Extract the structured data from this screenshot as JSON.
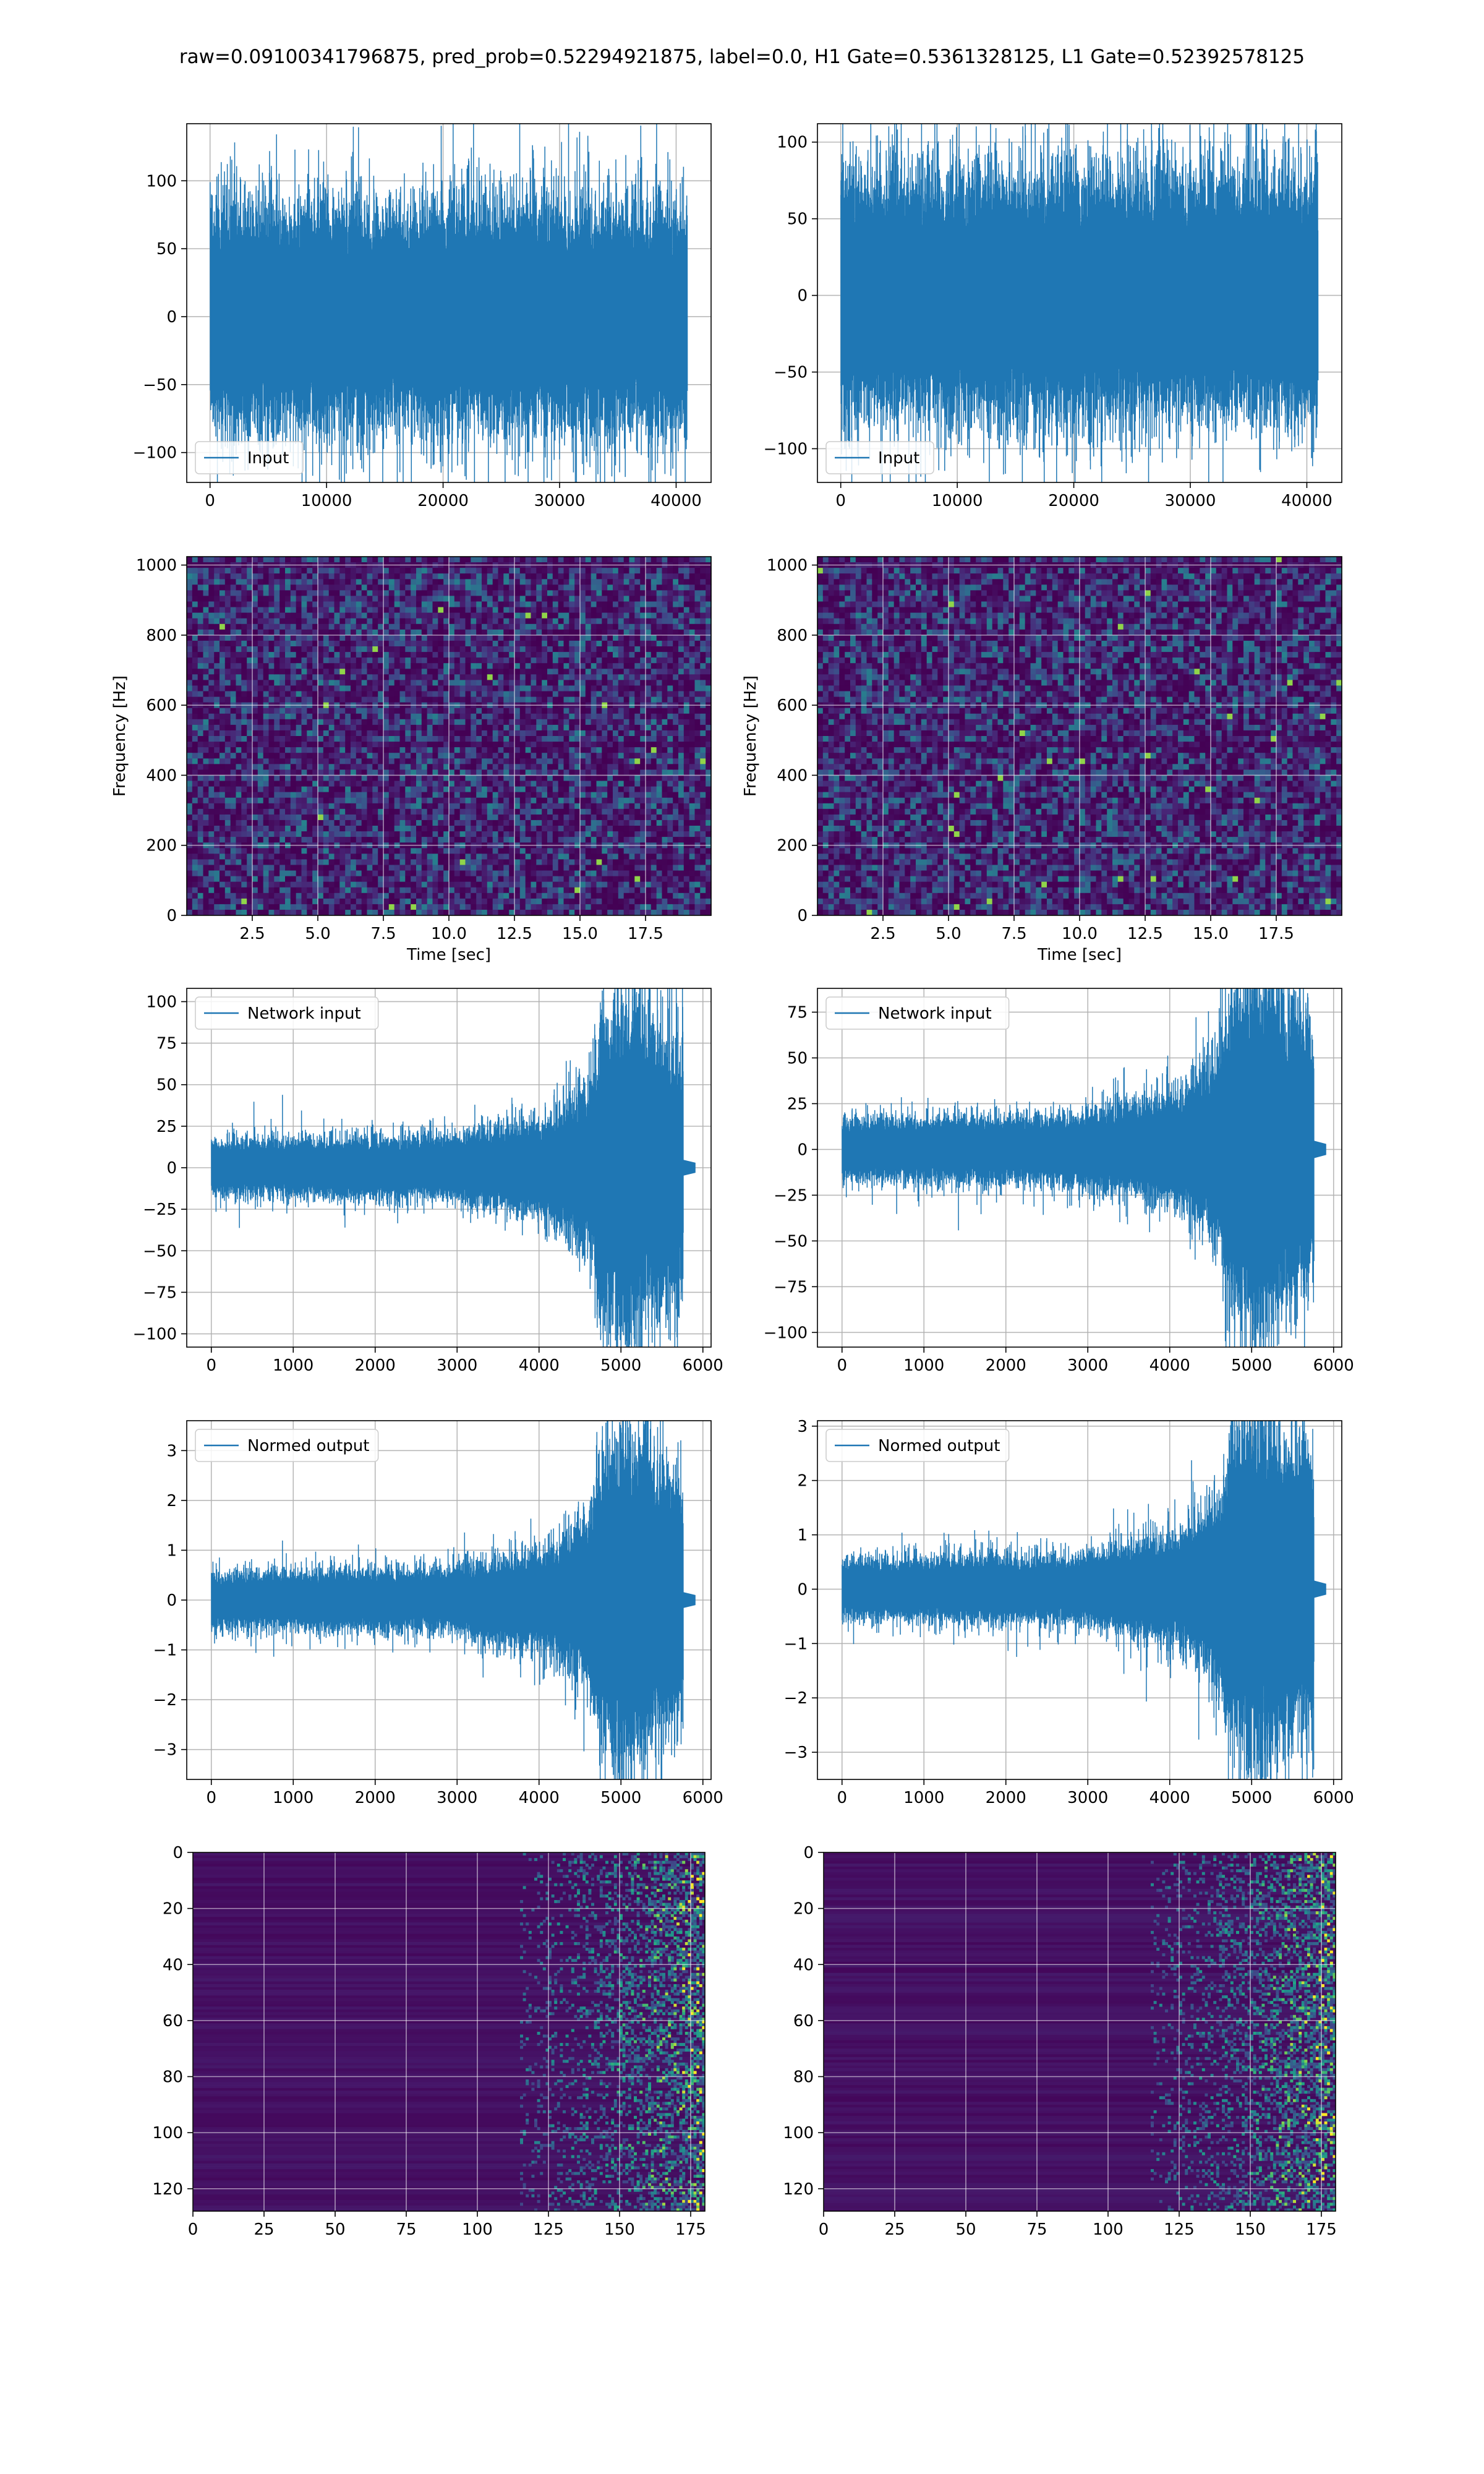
{
  "figure": {
    "suptitle": "raw=0.09100341796875, pred_prob=0.52294921875, label=0.0, H1 Gate=0.5361328125, L1 Gate=0.52392578125",
    "series_color": "#1f77b4",
    "grid_color": "#b0b0b0",
    "colormap": "viridis"
  },
  "chart_data": [
    {
      "id": "h1-input",
      "type": "line",
      "title": "",
      "legend": "Input",
      "legend_loc": "lower-left",
      "xlabel": "",
      "ylabel": "",
      "xlim": [
        -2000,
        43000
      ],
      "ylim": [
        -122,
        142
      ],
      "xticks": [
        0,
        10000,
        20000,
        30000,
        40000
      ],
      "xtick_labels": [
        "0",
        "10000",
        "20000",
        "30000",
        "40000"
      ],
      "yticks": [
        -100,
        -50,
        0,
        50,
        100
      ],
      "ytick_labels": [
        "−100",
        "−50",
        "0",
        "50",
        "100"
      ],
      "signal": {
        "n": 40960,
        "noise_amp": 30,
        "env_points": [
          [
            0,
            1
          ],
          [
            1,
            1
          ]
        ],
        "gap_after": 0
      },
      "grid": true
    },
    {
      "id": "l1-input",
      "type": "line",
      "title": "",
      "legend": "Input",
      "legend_loc": "lower-left",
      "xlabel": "",
      "ylabel": "",
      "xlim": [
        -2000,
        43000
      ],
      "ylim": [
        -122,
        112
      ],
      "xticks": [
        0,
        10000,
        20000,
        30000,
        40000
      ],
      "xtick_labels": [
        "0",
        "10000",
        "20000",
        "30000",
        "40000"
      ],
      "yticks": [
        -100,
        -50,
        0,
        50,
        100
      ],
      "ytick_labels": [
        "−100",
        "−50",
        "0",
        "50",
        "100"
      ],
      "signal": {
        "n": 40960,
        "noise_amp": 29,
        "env_points": [
          [
            0,
            1
          ],
          [
            1,
            1
          ]
        ],
        "gap_after": 0
      },
      "grid": true
    },
    {
      "id": "h1-spectrogram",
      "type": "heatmap",
      "title": "",
      "xlabel": "Time [sec]",
      "ylabel": "Frequency [Hz]",
      "xlim": [
        0,
        20
      ],
      "ylim": [
        0,
        1024
      ],
      "xticks": [
        2.5,
        5.0,
        7.5,
        10.0,
        12.5,
        15.0,
        17.5
      ],
      "xtick_labels": [
        "2.5",
        "5.0",
        "7.5",
        "10.0",
        "12.5",
        "15.0",
        "17.5"
      ],
      "yticks": [
        0,
        200,
        400,
        600,
        800,
        1000
      ],
      "ytick_labels": [
        "0",
        "200",
        "400",
        "600",
        "800",
        "1000"
      ],
      "grid": true
    },
    {
      "id": "l1-spectrogram",
      "type": "heatmap",
      "title": "",
      "xlabel": "Time [sec]",
      "ylabel": "Frequency [Hz]",
      "xlim": [
        0,
        20
      ],
      "ylim": [
        0,
        1024
      ],
      "xticks": [
        2.5,
        5.0,
        7.5,
        10.0,
        12.5,
        15.0,
        17.5
      ],
      "xtick_labels": [
        "2.5",
        "5.0",
        "7.5",
        "10.0",
        "12.5",
        "15.0",
        "17.5"
      ],
      "yticks": [
        0,
        200,
        400,
        600,
        800,
        1000
      ],
      "ytick_labels": [
        "0",
        "200",
        "400",
        "600",
        "800",
        "1000"
      ],
      "grid": true
    },
    {
      "id": "h1-network-input",
      "type": "line",
      "title": "",
      "legend": "Network input",
      "legend_loc": "upper-left",
      "xlabel": "",
      "ylabel": "",
      "xlim": [
        -300,
        6100
      ],
      "ylim": [
        -108,
        108
      ],
      "xticks": [
        0,
        1000,
        2000,
        3000,
        4000,
        5000,
        6000
      ],
      "xtick_labels": [
        "0",
        "1000",
        "2000",
        "3000",
        "4000",
        "5000",
        "6000"
      ],
      "yticks": [
        -100,
        -75,
        -50,
        -25,
        0,
        25,
        50,
        75,
        100
      ],
      "ytick_labels": [
        "−100",
        "−75",
        "−50",
        "−25",
        "0",
        "25",
        "50",
        "75",
        "100"
      ],
      "signal": {
        "n": 5760,
        "noise_amp": 6,
        "env_points": [
          [
            0,
            1
          ],
          [
            0.5,
            1.15
          ],
          [
            0.72,
            1.9
          ],
          [
            0.8,
            3.2
          ],
          [
            0.83,
            5.5
          ],
          [
            0.87,
            6.3
          ],
          [
            0.92,
            5.8
          ],
          [
            0.96,
            5.0
          ],
          [
            0.99,
            4.5
          ],
          [
            1.0,
            4.2
          ]
        ],
        "gap_after": 150
      },
      "grid": true
    },
    {
      "id": "l1-network-input",
      "type": "line",
      "title": "",
      "legend": "Network input",
      "legend_loc": "upper-left",
      "xlabel": "",
      "ylabel": "",
      "xlim": [
        -300,
        6100
      ],
      "ylim": [
        -108,
        88
      ],
      "xticks": [
        0,
        1000,
        2000,
        3000,
        4000,
        5000,
        6000
      ],
      "xtick_labels": [
        "0",
        "1000",
        "2000",
        "3000",
        "4000",
        "5000",
        "6000"
      ],
      "yticks": [
        -100,
        -75,
        -50,
        -25,
        0,
        25,
        50,
        75
      ],
      "ytick_labels": [
        "−100",
        "−75",
        "−50",
        "−25",
        "0",
        "25",
        "50",
        "75"
      ],
      "signal": {
        "n": 5760,
        "noise_amp": 6,
        "env_points": [
          [
            0,
            1
          ],
          [
            0.5,
            1.15
          ],
          [
            0.72,
            1.9
          ],
          [
            0.8,
            3.2
          ],
          [
            0.83,
            5.3
          ],
          [
            0.87,
            6.0
          ],
          [
            0.92,
            5.6
          ],
          [
            0.96,
            4.8
          ],
          [
            0.99,
            4.4
          ],
          [
            1.0,
            4.0
          ]
        ],
        "gap_after": 150
      },
      "grid": true
    },
    {
      "id": "h1-normed-output",
      "type": "line",
      "title": "",
      "legend": "Normed output",
      "legend_loc": "upper-left",
      "xlabel": "",
      "ylabel": "",
      "xlim": [
        -300,
        6100
      ],
      "ylim": [
        -3.6,
        3.6
      ],
      "xticks": [
        0,
        1000,
        2000,
        3000,
        4000,
        5000,
        6000
      ],
      "xtick_labels": [
        "0",
        "1000",
        "2000",
        "3000",
        "4000",
        "5000",
        "6000"
      ],
      "yticks": [
        -3,
        -2,
        -1,
        0,
        1,
        2,
        3
      ],
      "ytick_labels": [
        "−3",
        "−2",
        "−1",
        "0",
        "1",
        "2",
        "3"
      ],
      "signal": {
        "n": 5760,
        "noise_amp": 0.2,
        "env_points": [
          [
            0,
            1
          ],
          [
            0.5,
            1.15
          ],
          [
            0.72,
            1.9
          ],
          [
            0.8,
            3.2
          ],
          [
            0.83,
            5.5
          ],
          [
            0.87,
            6.3
          ],
          [
            0.92,
            5.8
          ],
          [
            0.96,
            5.0
          ],
          [
            0.99,
            4.5
          ],
          [
            1.0,
            4.2
          ]
        ],
        "gap_after": 150
      },
      "grid": true
    },
    {
      "id": "l1-normed-output",
      "type": "line",
      "title": "",
      "legend": "Normed output",
      "legend_loc": "upper-left",
      "xlabel": "",
      "ylabel": "",
      "xlim": [
        -300,
        6100
      ],
      "ylim": [
        -3.5,
        3.1
      ],
      "xticks": [
        0,
        1000,
        2000,
        3000,
        4000,
        5000,
        6000
      ],
      "xtick_labels": [
        "0",
        "1000",
        "2000",
        "3000",
        "4000",
        "5000",
        "6000"
      ],
      "yticks": [
        -3,
        -2,
        -1,
        0,
        1,
        2,
        3
      ],
      "ytick_labels": [
        "−3",
        "−2",
        "−1",
        "0",
        "1",
        "2",
        "3"
      ],
      "signal": {
        "n": 5760,
        "noise_amp": 0.2,
        "env_points": [
          [
            0,
            1
          ],
          [
            0.5,
            1.15
          ],
          [
            0.72,
            1.9
          ],
          [
            0.8,
            3.2
          ],
          [
            0.83,
            5.3
          ],
          [
            0.87,
            6.0
          ],
          [
            0.92,
            5.6
          ],
          [
            0.96,
            4.8
          ],
          [
            0.99,
            4.4
          ],
          [
            1.0,
            4.0
          ]
        ],
        "gap_after": 150
      },
      "grid": true
    },
    {
      "id": "h1-feature-map",
      "type": "heatmap",
      "title": "",
      "xlabel": "",
      "ylabel": "",
      "xlim": [
        0,
        180
      ],
      "ylim": [
        128,
        0
      ],
      "xticks": [
        0,
        25,
        50,
        75,
        100,
        125,
        150,
        175
      ],
      "xtick_labels": [
        "0",
        "25",
        "50",
        "75",
        "100",
        "125",
        "150",
        "175"
      ],
      "yticks": [
        0,
        20,
        40,
        60,
        80,
        100,
        120
      ],
      "ytick_labels": [
        "0",
        "20",
        "40",
        "60",
        "80",
        "100",
        "120"
      ],
      "grid": true
    },
    {
      "id": "l1-feature-map",
      "type": "heatmap",
      "title": "",
      "xlabel": "",
      "ylabel": "",
      "xlim": [
        0,
        180
      ],
      "ylim": [
        128,
        0
      ],
      "xticks": [
        0,
        25,
        50,
        75,
        100,
        125,
        150,
        175
      ],
      "xtick_labels": [
        "0",
        "25",
        "50",
        "75",
        "100",
        "125",
        "150",
        "175"
      ],
      "yticks": [
        0,
        20,
        40,
        60,
        80,
        100,
        120
      ],
      "ytick_labels": [
        "0",
        "20",
        "40",
        "60",
        "80",
        "100",
        "120"
      ],
      "grid": true
    }
  ]
}
